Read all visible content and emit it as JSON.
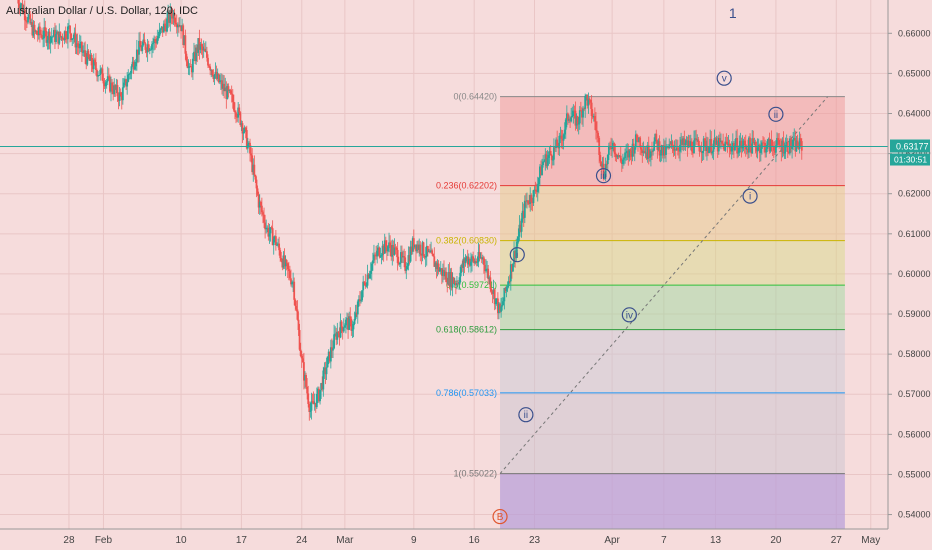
{
  "chart_data": {
    "type": "candlestick",
    "title": "Australian Dollar / U.S. Dollar, 120, IDC",
    "wave_degree_label": "1",
    "x_ticks": [
      "28",
      "Feb",
      "10",
      "17",
      "24",
      "Mar",
      "9",
      "16",
      "23",
      "Apr",
      "7",
      "13",
      "20",
      "27",
      "May"
    ],
    "y_ticks": [
      "0.66000",
      "0.65000",
      "0.64000",
      "0.63000",
      "0.62000",
      "0.61000",
      "0.60000",
      "0.59000",
      "0.58000",
      "0.57000",
      "0.56000",
      "0.55000",
      "0.54000"
    ],
    "ylim": [
      0.5364,
      0.6683
    ],
    "last_price": "0.63177",
    "countdown": "01:30:51",
    "fibonacci": [
      {
        "label": "0(0.64420)",
        "value": 0.6442,
        "color": "#888888"
      },
      {
        "label": "0.236(0.62202)",
        "value": 0.62202,
        "color": "#e53935"
      },
      {
        "label": "0.382(0.60830)",
        "value": 0.6083,
        "color": "#c9b400"
      },
      {
        "label": "0.5(0.59721)",
        "value": 0.59721,
        "color": "#2fbf3a"
      },
      {
        "label": "0.618(0.58612)",
        "value": 0.58612,
        "color": "#2c9c3c"
      },
      {
        "label": "0.786(0.57033)",
        "value": 0.57033,
        "color": "#2196f3"
      },
      {
        "label": "1(0.55022)",
        "value": 0.55022,
        "color": "#777777"
      }
    ],
    "wave_labels": [
      {
        "text": "B",
        "date": "Mar 19",
        "price": 0.5395,
        "color": "#e0562f"
      },
      {
        "text": "i",
        "date": "Mar 21",
        "price": 0.6048,
        "color": "#3a4f8c"
      },
      {
        "text": "ii",
        "date": "Mar 22",
        "price": 0.5649,
        "color": "#3a4f8c"
      },
      {
        "text": "iii",
        "date": "Mar 31",
        "price": 0.6245,
        "color": "#3a4f8c"
      },
      {
        "text": "iv",
        "date": "Apr 3",
        "price": 0.5898,
        "color": "#3a4f8c"
      },
      {
        "text": "v",
        "date": "Apr 14",
        "price": 0.6488,
        "color": "#3a4f8c"
      },
      {
        "text": "i",
        "date": "Apr 17",
        "price": 0.6194,
        "color": "#3a4f8c"
      },
      {
        "text": "ii",
        "date": "Apr 20",
        "price": 0.6398,
        "color": "#3a4f8c"
      }
    ],
    "price_path": [
      {
        "date": "Jan 22",
        "price": 0.669
      },
      {
        "date": "Jan 24",
        "price": 0.66
      },
      {
        "date": "Jan 27",
        "price": 0.659
      },
      {
        "date": "Jan 28",
        "price": 0.661
      },
      {
        "date": "Jan 29",
        "price": 0.657
      },
      {
        "date": "Jan 30",
        "price": 0.654
      },
      {
        "date": "Feb 3",
        "price": 0.644
      },
      {
        "date": "Feb 5",
        "price": 0.656
      },
      {
        "date": "Feb 7",
        "price": 0.658
      },
      {
        "date": "Feb 9",
        "price": 0.665
      },
      {
        "date": "Feb 10",
        "price": 0.662
      },
      {
        "date": "Feb 11",
        "price": 0.65
      },
      {
        "date": "Feb 12",
        "price": 0.657
      },
      {
        "date": "Feb 13",
        "price": 0.654
      },
      {
        "date": "Feb 14",
        "price": 0.649
      },
      {
        "date": "Feb 16",
        "price": 0.643
      },
      {
        "date": "Feb 17",
        "price": 0.638
      },
      {
        "date": "Feb 18",
        "price": 0.63
      },
      {
        "date": "Feb 19",
        "price": 0.618
      },
      {
        "date": "Feb 20",
        "price": 0.611
      },
      {
        "date": "Feb 21",
        "price": 0.608
      },
      {
        "date": "Feb 22",
        "price": 0.602
      },
      {
        "date": "Feb 23",
        "price": 0.598
      },
      {
        "date": "Feb 24",
        "price": 0.578
      },
      {
        "date": "Feb 25",
        "price": 0.566
      },
      {
        "date": "Feb 26",
        "price": 0.57
      },
      {
        "date": "Feb 27",
        "price": 0.578
      },
      {
        "date": "Feb 28",
        "price": 0.585
      },
      {
        "date": "Mar 1",
        "price": 0.588
      },
      {
        "date": "Mar 2",
        "price": 0.587
      },
      {
        "date": "Mar 3",
        "price": 0.596
      },
      {
        "date": "Mar 4",
        "price": 0.602
      },
      {
        "date": "Mar 5",
        "price": 0.606
      },
      {
        "date": "Mar 6",
        "price": 0.607
      },
      {
        "date": "Mar 7",
        "price": 0.605
      },
      {
        "date": "Mar 8",
        "price": 0.602
      },
      {
        "date": "Mar 9",
        "price": 0.608
      },
      {
        "date": "Mar 10",
        "price": 0.606
      },
      {
        "date": "Mar 11",
        "price": 0.604
      },
      {
        "date": "Mar 12",
        "price": 0.601
      },
      {
        "date": "Mar 13",
        "price": 0.599
      },
      {
        "date": "Mar 14",
        "price": 0.598
      },
      {
        "date": "Mar 15",
        "price": 0.604
      },
      {
        "date": "Mar 16",
        "price": 0.603
      },
      {
        "date": "Mar 17",
        "price": 0.604
      },
      {
        "date": "Mar 18",
        "price": 0.597
      },
      {
        "date": "Mar 19",
        "price": 0.59
      },
      {
        "date": "Mar 20",
        "price": 0.599
      },
      {
        "date": "Mar 21",
        "price": 0.608
      },
      {
        "date": "Mar 22",
        "price": 0.618
      },
      {
        "date": "Mar 23",
        "price": 0.62
      },
      {
        "date": "Mar 24",
        "price": 0.628
      },
      {
        "date": "Mar 25",
        "price": 0.63
      },
      {
        "date": "Mar 26",
        "price": 0.633
      },
      {
        "date": "Mar 27",
        "price": 0.64
      },
      {
        "date": "Mar 28",
        "price": 0.638
      },
      {
        "date": "Mar 29",
        "price": 0.644
      },
      {
        "date": "Mar 30",
        "price": 0.638
      },
      {
        "date": "Mar 31",
        "price": 0.625
      },
      {
        "date": "Apr 1",
        "price": 0.633
      },
      {
        "date": "Apr 2",
        "price": 0.628
      },
      {
        "date": "Apr 3",
        "price": 0.63
      },
      {
        "date": "Apr 4",
        "price": 0.634
      },
      {
        "date": "Apr 5",
        "price": 0.63
      },
      {
        "date": "Apr 6",
        "price": 0.633
      },
      {
        "date": "Apr 7",
        "price": 0.63
      },
      {
        "date": "Apr 8",
        "price": 0.632
      }
    ],
    "trendline": {
      "from": {
        "date": "Mar 19",
        "price": 0.5502
      },
      "to": {
        "date": "Apr 26",
        "price": 0.6442
      }
    },
    "colors": {
      "up": "#26a69a",
      "down": "#ef5350",
      "background": "#f6dcdc",
      "price_line": "#26a69a"
    }
  }
}
